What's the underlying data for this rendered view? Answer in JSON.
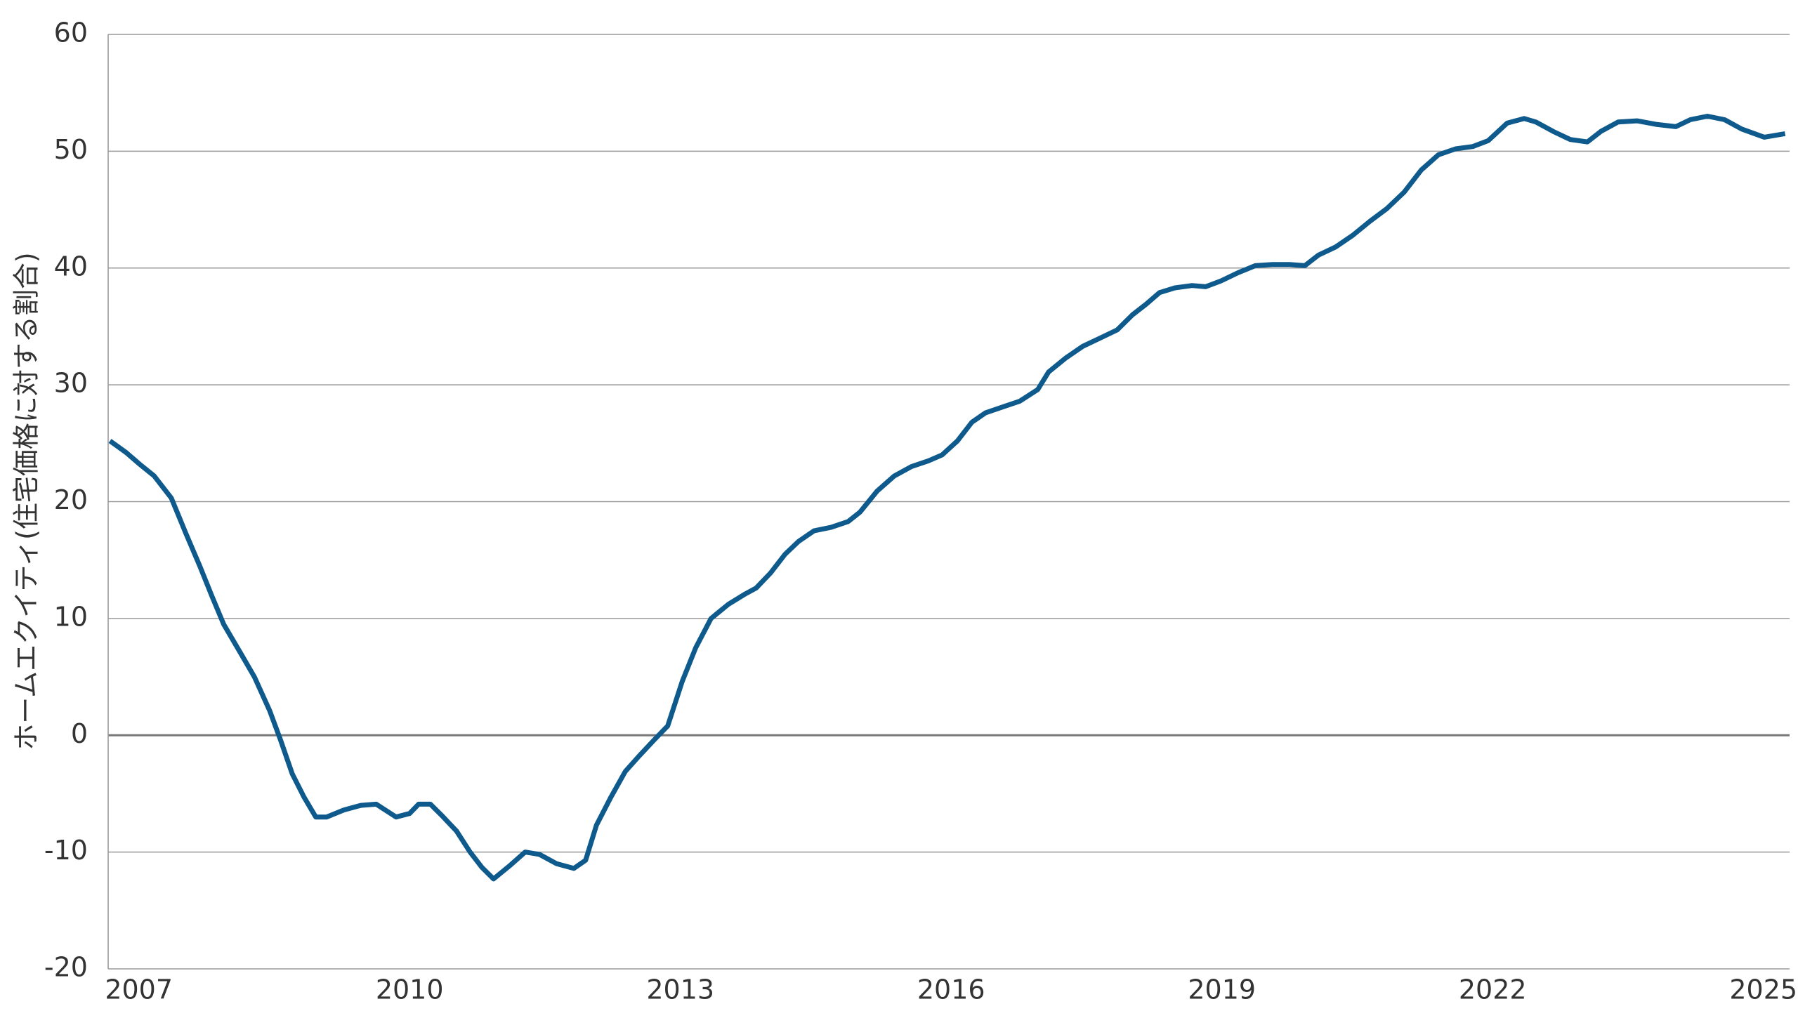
{
  "chart_data": {
    "type": "line",
    "y_axis_label": "ホームエクイティ(住宅価格に対する割合)",
    "xlim": [
      2006.66,
      2025.29
    ],
    "xticks": [
      2007,
      2010,
      2013,
      2016,
      2019,
      2022,
      2025
    ],
    "ylim": [
      -20,
      60
    ],
    "yticks": [
      -20,
      -10,
      0,
      10,
      20,
      30,
      40,
      50,
      60
    ],
    "grid": true,
    "x": [
      2006.68,
      2006.86,
      2007.01,
      2007.17,
      2007.36,
      2007.52,
      2007.68,
      2007.81,
      2007.94,
      2008.13,
      2008.28,
      2008.45,
      2008.57,
      2008.7,
      2008.83,
      2008.96,
      2009.08,
      2009.27,
      2009.46,
      2009.63,
      2009.85,
      2010.0,
      2010.1,
      2010.23,
      2010.36,
      2010.52,
      2010.67,
      2010.8,
      2010.93,
      2011.12,
      2011.28,
      2011.44,
      2011.63,
      2011.82,
      2011.95,
      2012.07,
      2012.23,
      2012.39,
      2012.54,
      2012.71,
      2012.86,
      2013.02,
      2013.17,
      2013.34,
      2013.53,
      2013.72,
      2013.84,
      2014.0,
      2014.16,
      2014.31,
      2014.48,
      2014.67,
      2014.86,
      2014.99,
      2015.18,
      2015.37,
      2015.56,
      2015.75,
      2015.9,
      2016.07,
      2016.23,
      2016.38,
      2016.57,
      2016.76,
      2016.96,
      2017.08,
      2017.27,
      2017.46,
      2017.65,
      2017.84,
      2018.01,
      2018.16,
      2018.31,
      2018.48,
      2018.67,
      2018.82,
      2018.99,
      2019.18,
      2019.37,
      2019.56,
      2019.75,
      2019.92,
      2020.07,
      2020.26,
      2020.45,
      2020.64,
      2020.83,
      2021.02,
      2021.21,
      2021.4,
      2021.59,
      2021.78,
      2021.95,
      2022.16,
      2022.35,
      2022.48,
      2022.67,
      2022.86,
      2023.05,
      2023.2,
      2023.39,
      2023.6,
      2023.81,
      2024.03,
      2024.19,
      2024.38,
      2024.57,
      2024.76,
      2025.01,
      2025.24
    ],
    "series": [
      {
        "color": "#0f5a8c",
        "values": [
          25.2,
          24.2,
          23.2,
          22.2,
          20.3,
          17.3,
          14.4,
          11.9,
          9.5,
          7.0,
          5.0,
          2.1,
          -0.4,
          -3.3,
          -5.3,
          -7.0,
          -7.0,
          -6.4,
          -6.0,
          -5.9,
          -7.0,
          -6.7,
          -5.9,
          -5.9,
          -6.9,
          -8.2,
          -10.0,
          -11.3,
          -12.3,
          -11.1,
          -10.0,
          -10.2,
          -11.0,
          -11.4,
          -10.7,
          -7.7,
          -5.3,
          -3.1,
          -1.8,
          -0.4,
          0.8,
          4.6,
          7.5,
          10.0,
          11.2,
          12.1,
          12.6,
          13.9,
          15.5,
          16.6,
          17.5,
          17.8,
          18.3,
          19.1,
          20.9,
          22.2,
          23.0,
          23.5,
          24.0,
          25.2,
          26.8,
          27.6,
          28.1,
          28.6,
          29.6,
          31.1,
          32.3,
          33.3,
          34.0,
          34.7,
          36.0,
          36.9,
          37.9,
          38.3,
          38.5,
          38.4,
          38.9,
          39.6,
          40.2,
          40.3,
          40.3,
          40.2,
          41.1,
          41.8,
          42.8,
          44.0,
          45.1,
          46.5,
          48.4,
          49.7,
          50.2,
          50.4,
          50.9,
          52.4,
          52.8,
          52.5,
          51.7,
          51.0,
          50.8,
          51.7,
          52.5,
          52.6,
          52.3,
          52.1,
          52.7,
          53.0,
          52.7,
          51.9,
          51.2,
          51.5
        ]
      }
    ]
  }
}
